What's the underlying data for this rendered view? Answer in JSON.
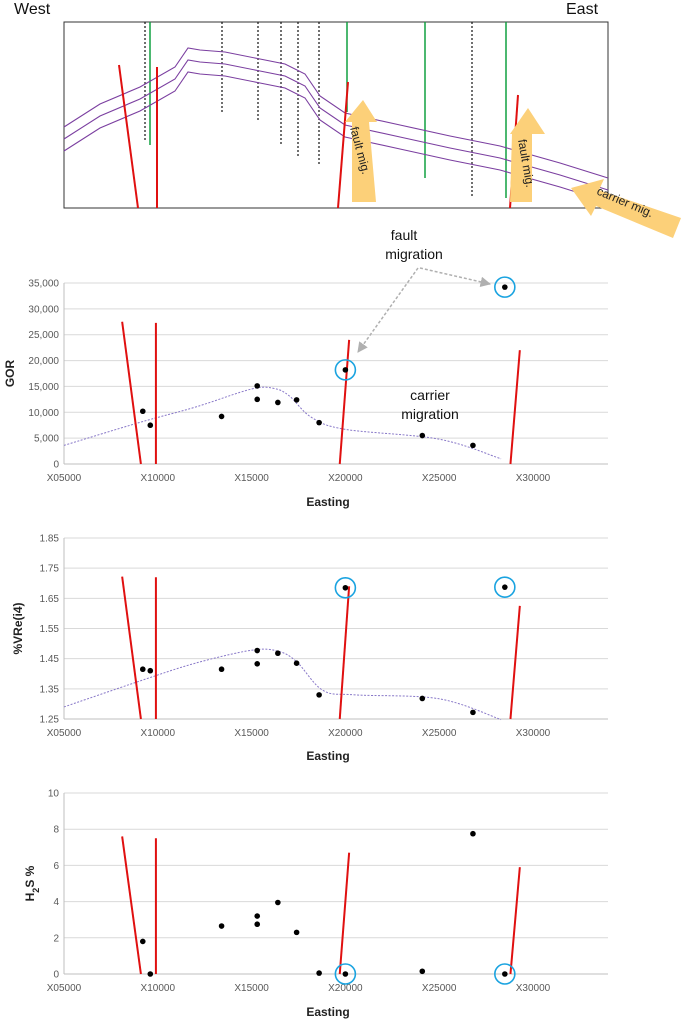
{
  "cross_section": {
    "west_label": "West",
    "east_label": "East",
    "arrow_labels": [
      "fault mig.",
      "fault mig.",
      "carrier mig."
    ]
  },
  "annotations": {
    "fault_migration": [
      "fault",
      "migration"
    ],
    "carrier_migration": [
      "carrier",
      "migration"
    ]
  },
  "colors": {
    "fault": "#e01010",
    "well_green": "#10a040",
    "horizon": "#7b3fa0",
    "trend": "#8878c8",
    "highlight": "#1aa3e0",
    "arrow": "#fcd079",
    "gridline": "#d9d9d9"
  },
  "chart_data": [
    {
      "type": "scatter",
      "xlabel": "Easting",
      "ylabel": "GOR",
      "xlim": [
        5000,
        34000
      ],
      "ylim": [
        0,
        35000
      ],
      "yticks": [
        "0",
        "5,000",
        "10,000",
        "15,000",
        "20,000",
        "25,000",
        "30,000",
        "35,000"
      ],
      "xticks": [
        "X05000",
        "X10000",
        "X15000",
        "X20000",
        "X25000",
        "X30000"
      ],
      "grid": true,
      "points": [
        [
          9200,
          10200
        ],
        [
          9600,
          7500
        ],
        [
          13400,
          9200
        ],
        [
          15300,
          15100
        ],
        [
          15300,
          12500
        ],
        [
          16400,
          11900
        ],
        [
          17400,
          12400
        ],
        [
          18600,
          8000
        ],
        [
          20000,
          18200
        ],
        [
          24100,
          5500
        ],
        [
          26800,
          3600
        ],
        [
          28500,
          34200
        ]
      ],
      "highlighted": [
        [
          20000,
          18200
        ],
        [
          28500,
          34200
        ]
      ],
      "trend": [
        [
          5000,
          3600
        ],
        [
          9000,
          8000
        ],
        [
          12000,
          11000
        ],
        [
          15000,
          14500
        ],
        [
          16200,
          14600
        ],
        [
          17000,
          13200
        ],
        [
          18200,
          9000
        ],
        [
          20000,
          6700
        ],
        [
          25000,
          4800
        ],
        [
          28300,
          1000
        ]
      ],
      "faults": [
        [
          [
            8100,
            27500
          ],
          [
            9100,
            0
          ]
        ],
        [
          [
            9900,
            27300
          ],
          [
            9900,
            0
          ]
        ],
        [
          [
            20200,
            24000
          ],
          [
            19700,
            0
          ]
        ],
        [
          [
            29300,
            22000
          ],
          [
            28800,
            0
          ]
        ]
      ]
    },
    {
      "type": "scatter",
      "xlabel": "Easting",
      "ylabel": "%VRe(i4)",
      "xlim": [
        5000,
        34000
      ],
      "ylim": [
        1.25,
        1.85
      ],
      "yticks": [
        "1.25",
        "1.35",
        "1.45",
        "1.55",
        "1.65",
        "1.75",
        "1.85"
      ],
      "xticks": [
        "X05000",
        "X10000",
        "X15000",
        "X20000",
        "X25000",
        "X30000"
      ],
      "grid": true,
      "points": [
        [
          9200,
          1.415
        ],
        [
          9600,
          1.41
        ],
        [
          13400,
          1.415
        ],
        [
          15300,
          1.477
        ],
        [
          15300,
          1.433
        ],
        [
          16400,
          1.468
        ],
        [
          17400,
          1.435
        ],
        [
          18600,
          1.33
        ],
        [
          20000,
          1.685
        ],
        [
          24100,
          1.318
        ],
        [
          26800,
          1.272
        ],
        [
          28500,
          1.687
        ]
      ],
      "highlighted": [
        [
          20000,
          1.685
        ],
        [
          28500,
          1.687
        ]
      ],
      "trend": [
        [
          5000,
          1.29
        ],
        [
          9000,
          1.375
        ],
        [
          12000,
          1.435
        ],
        [
          15000,
          1.478
        ],
        [
          16400,
          1.475
        ],
        [
          17400,
          1.44
        ],
        [
          18800,
          1.345
        ],
        [
          20500,
          1.33
        ],
        [
          25000,
          1.317
        ],
        [
          28300,
          1.248
        ]
      ],
      "faults": [
        [
          [
            8100,
            1.722
          ],
          [
            9100,
            1.25
          ]
        ],
        [
          [
            9900,
            1.72
          ],
          [
            9900,
            1.25
          ]
        ],
        [
          [
            20200,
            1.69
          ],
          [
            19700,
            1.25
          ]
        ],
        [
          [
            29300,
            1.625
          ],
          [
            28800,
            1.25
          ]
        ]
      ]
    },
    {
      "type": "scatter",
      "xlabel": "Easting",
      "ylabel": "H2S %",
      "ylabel_parts": [
        "H",
        "2",
        "S %"
      ],
      "xlim": [
        5000,
        34000
      ],
      "ylim": [
        0,
        10
      ],
      "yticks": [
        "0",
        "2",
        "4",
        "6",
        "8",
        "10"
      ],
      "xticks": [
        "X05000",
        "X10000",
        "X15000",
        "X20000",
        "X25000",
        "X30000"
      ],
      "grid": true,
      "points": [
        [
          9200,
          1.8
        ],
        [
          9600,
          0.0
        ],
        [
          13400,
          2.65
        ],
        [
          15300,
          3.2
        ],
        [
          15300,
          2.75
        ],
        [
          16400,
          3.95
        ],
        [
          17400,
          2.3
        ],
        [
          18600,
          0.05
        ],
        [
          20000,
          0.0
        ],
        [
          24100,
          0.15
        ],
        [
          26800,
          7.75
        ],
        [
          28500,
          0.0
        ]
      ],
      "highlighted": [
        [
          20000,
          0.0
        ],
        [
          28500,
          0.0
        ]
      ],
      "faults": [
        [
          [
            8100,
            7.6
          ],
          [
            9100,
            0
          ]
        ],
        [
          [
            9900,
            7.5
          ],
          [
            9900,
            0
          ]
        ],
        [
          [
            20200,
            6.7
          ],
          [
            19700,
            0
          ]
        ],
        [
          [
            29300,
            5.9
          ],
          [
            28800,
            0
          ]
        ]
      ]
    }
  ]
}
